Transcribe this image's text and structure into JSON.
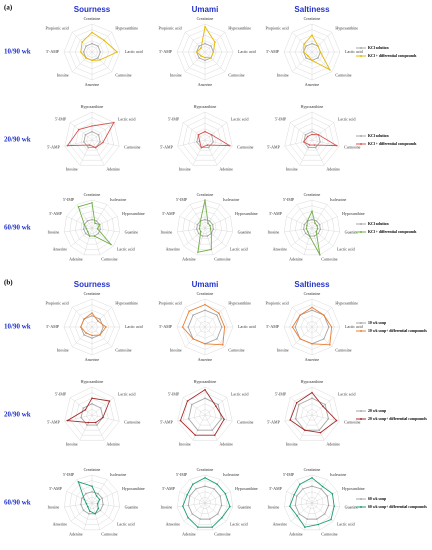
{
  "rlim": [
    0,
    1
  ],
  "rticks": [
    0.2,
    0.4,
    0.6,
    0.8,
    1
  ],
  "panels": [
    {
      "label": "(a)",
      "columns": [
        "Sourness",
        "Umami",
        "Saltiness"
      ],
      "rows": [
        {
          "label": "10/90 wk",
          "series": [
            {
              "name": "KCl solution",
              "color": "#a6a6a6"
            },
            {
              "name": "KCl + differential compounds",
              "color": "#e6b800"
            }
          ],
          "axes": [
            "Creatinine",
            "Hypoxanthine",
            "Lactic acid",
            "Carnosine",
            "Anserine",
            "Inosine",
            "5'-AMP",
            "Propionic acid"
          ],
          "charts": [
            {
              "values": [
                [
                  0.3,
                  0.3,
                  0.3,
                  0.3,
                  0.3,
                  0.3,
                  0.3,
                  0.3
                ],
                [
                  0.7,
                  0.6,
                  0.9,
                  0.4,
                  0.3,
                  0.3,
                  0.4,
                  0.5
                ]
              ]
            },
            {
              "values": [
                [
                  0.3,
                  0.3,
                  0.3,
                  0.3,
                  0.3,
                  0.3,
                  0.3,
                  0.3
                ],
                [
                  0.9,
                  0.5,
                  0.3,
                  0.3,
                  0.2,
                  0.2,
                  0.3,
                  0.2
                ]
              ]
            },
            {
              "values": [
                [
                  0.3,
                  0.3,
                  0.3,
                  0.3,
                  0.3,
                  0.3,
                  0.3,
                  0.3
                ],
                [
                  0.6,
                  0.3,
                  0.3,
                  0.9,
                  0.3,
                  0.2,
                  0.3,
                  0.4
                ]
              ]
            }
          ]
        },
        {
          "label": "20/90 wk",
          "series": [
            {
              "name": "KCl solution",
              "color": "#a6a6a6"
            },
            {
              "name": "KCl + differential compounds",
              "color": "#d9534f"
            }
          ],
          "axes": [
            "Hypoxanthine",
            "Lactic acid",
            "Carnosine",
            "Adenine",
            "Inosine",
            "5'-AMP",
            "5'-IMP"
          ],
          "charts": [
            {
              "values": [
                [
                  0.3,
                  0.3,
                  0.3,
                  0.3,
                  0.3,
                  0.3,
                  0.3
                ],
                [
                  0.5,
                  1,
                  0.4,
                  0.3,
                  0.2,
                  0.9,
                  0.6
                ]
              ]
            },
            {
              "values": [
                [
                  0.3,
                  0.3,
                  0.3,
                  0.3,
                  0.3,
                  0.3,
                  0.3
                ],
                [
                  0.3,
                  0.3,
                  0.9,
                  0.2,
                  0.3,
                  0.2,
                  0.3
                ]
              ]
            },
            {
              "values": [
                [
                  0.3,
                  0.3,
                  0.3,
                  0.3,
                  0.3,
                  0.3,
                  0.3
                ],
                [
                  0.2,
                  0.3,
                  0.9,
                  0.2,
                  0.2,
                  0.3,
                  0.2
                ]
              ]
            }
          ]
        },
        {
          "label": "60/90 wk",
          "series": [
            {
              "name": "KCl solution",
              "color": "#a6a6a6"
            },
            {
              "name": "KCl + differential compounds",
              "color": "#70ad47"
            }
          ],
          "axes": [
            "Creatinine",
            "Isoleucine",
            "Hypoxanthine",
            "Guanine",
            "Lactic acid",
            "Carnosine",
            "Adenine",
            "Anserine",
            "Inosine",
            "5'-AMP",
            "5'-IMP"
          ],
          "charts": [
            {
              "values": [
                [
                  0.3,
                  0.3,
                  0.3,
                  0.3,
                  0.3,
                  0.3,
                  0.3,
                  0.3,
                  0.3,
                  0.3,
                  0.3
                ],
                [
                  0.9,
                  0.2,
                  0.3,
                  0.2,
                  0.9,
                  0.3,
                  0.3,
                  0.2,
                  0.2,
                  0.3,
                  0.9
                ]
              ]
            },
            {
              "values": [
                [
                  0.3,
                  0.3,
                  0.3,
                  0.3,
                  0.3,
                  0.3,
                  0.3,
                  0.3,
                  0.3,
                  0.3,
                  0.3
                ],
                [
                  1,
                  0.2,
                  0.2,
                  0.2,
                  0.3,
                  0.8,
                  0.9,
                  0.2,
                  0.2,
                  0.2,
                  0.3
                ]
              ]
            },
            {
              "values": [
                [
                  0.3,
                  0.3,
                  0.3,
                  0.3,
                  0.3,
                  0.3,
                  0.3,
                  0.3,
                  0.3,
                  0.3,
                  0.3
                ],
                [
                  0.6,
                  0.2,
                  0.2,
                  0.2,
                  0.2,
                  1,
                  0.3,
                  0.2,
                  0.2,
                  0.2,
                  0.3
                ]
              ]
            }
          ]
        }
      ]
    },
    {
      "label": "(b)",
      "columns": [
        "Sourness",
        "Umami",
        "Saltiness"
      ],
      "rows": [
        {
          "label": "10/90 wk",
          "series": [
            {
              "name": "10 wk soup",
              "color": "#a6a6a6"
            },
            {
              "name": "10 wk soup+ differential compounds",
              "color": "#ed7d31"
            }
          ],
          "axes": [
            "Creatinine",
            "Hypoxanthine",
            "Lactic acid",
            "Carnosine",
            "Anserine",
            "Inosine",
            "5'-AMP",
            "Propionic acid"
          ],
          "charts": [
            {
              "values": [
                [
                  0.4,
                  0.4,
                  0.4,
                  0.4,
                  0.4,
                  0.4,
                  0.4,
                  0.4
                ],
                [
                  0.5,
                  0.3,
                  0.5,
                  0.4,
                  0.3,
                  0.3,
                  0.4,
                  0.4
                ]
              ]
            },
            {
              "values": [
                [
                  0.6,
                  0.6,
                  0.6,
                  0.6,
                  0.6,
                  0.6,
                  0.6,
                  0.6
                ],
                [
                  0.8,
                  0.7,
                  0.7,
                  0.9,
                  0.6,
                  0.6,
                  0.8,
                  0.8
                ]
              ]
            },
            {
              "values": [
                [
                  0.6,
                  0.6,
                  0.6,
                  0.6,
                  0.6,
                  0.6,
                  0.6,
                  0.6
                ],
                [
                  0.7,
                  0.6,
                  0.7,
                  0.9,
                  0.6,
                  0.6,
                  0.7,
                  0.6
                ]
              ]
            }
          ]
        },
        {
          "label": "20/90 wk",
          "series": [
            {
              "name": "20 wk soup",
              "color": "#a6a6a6"
            },
            {
              "name": "20 wk soup+ differential compounds",
              "color": "#a52a2a"
            }
          ],
          "axes": [
            "Hypoxanthine",
            "Lactic acid",
            "Carnosine",
            "Adenine",
            "Inosine",
            "5'-AMP",
            "5'-IMP"
          ],
          "charts": [
            {
              "values": [
                [
                  0.4,
                  0.4,
                  0.4,
                  0.4,
                  0.4,
                  0.4,
                  0.4
                ],
                [
                  0.6,
                  0.8,
                  0.4,
                  0.3,
                  0.3,
                  0.9,
                  0.3
                ]
              ]
            },
            {
              "values": [
                [
                  0.6,
                  0.6,
                  0.6,
                  0.6,
                  0.6,
                  0.6,
                  0.6
                ],
                [
                  0.9,
                  0.5,
                  0.7,
                  0.8,
                  0.8,
                  0.9,
                  0.8
                ]
              ]
            },
            {
              "values": [
                [
                  0.6,
                  0.6,
                  0.6,
                  0.6,
                  0.6,
                  0.6,
                  0.6
                ],
                [
                  0.8,
                  0.5,
                  0.9,
                  0.7,
                  0.6,
                  0.8,
                  0.7
                ]
              ]
            }
          ]
        },
        {
          "label": "60/90 wk",
          "series": [
            {
              "name": "60 wk soup",
              "color": "#a6a6a6"
            },
            {
              "name": "60 wk soup+ differential compounds",
              "color": "#1a9e6e"
            }
          ],
          "axes": [
            "Creatinine",
            "Isoleucine",
            "Hypoxanthine",
            "Guanine",
            "Lactic acid",
            "Carnosine",
            "Adenine",
            "Anserine",
            "Inosine",
            "5'-AMP",
            "5'-IMP"
          ],
          "charts": [
            {
              "values": [
                [
                  0.4,
                  0.4,
                  0.4,
                  0.4,
                  0.4,
                  0.4,
                  0.4,
                  0.4,
                  0.4,
                  0.4,
                  0.4
                ],
                [
                  0.6,
                  0.3,
                  0.3,
                  0.2,
                  0.3,
                  0.4,
                  0.3,
                  0.2,
                  0.2,
                  0.3,
                  0.9
                ]
              ]
            },
            {
              "values": [
                [
                  0.6,
                  0.6,
                  0.6,
                  0.6,
                  0.6,
                  0.6,
                  0.6,
                  0.6,
                  0.6,
                  0.6,
                  0.6
                ],
                [
                  0.9,
                  0.8,
                  0.8,
                  0.9,
                  0.8,
                  0.9,
                  0.9,
                  0.8,
                  0.8,
                  0.7,
                  0.8
                ]
              ]
            },
            {
              "values": [
                [
                  0.6,
                  0.6,
                  0.6,
                  0.6,
                  0.6,
                  0.6,
                  0.6,
                  0.6,
                  0.6,
                  0.6,
                  0.6
                ],
                [
                  0.9,
                  0.7,
                  0.8,
                  0.8,
                  0.9,
                  0.8,
                  0.9,
                  0.7,
                  0.8,
                  0.7,
                  0.8
                ]
              ]
            }
          ]
        }
      ]
    }
  ]
}
